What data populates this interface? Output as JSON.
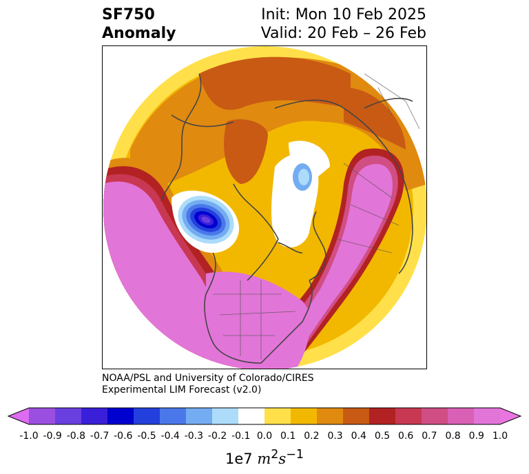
{
  "title": {
    "variable": "SF750",
    "kind": "Anomaly",
    "init": "Init: Mon 10 Feb 2025",
    "valid": "Valid: 20 Feb – 26 Feb"
  },
  "credit": {
    "line1": "NOAA/PSL and University of Colorado/CIRES",
    "line2": "Experimental LIM Forecast (v2.0)"
  },
  "colorbar": {
    "ticks": [
      "-1.0",
      "-0.9",
      "-0.8",
      "-0.7",
      "-0.6",
      "-0.5",
      "-0.4",
      "-0.3",
      "-0.2",
      "-0.1",
      "0.0",
      "0.1",
      "0.2",
      "0.3",
      "0.4",
      "0.5",
      "0.6",
      "0.7",
      "0.8",
      "0.9",
      "1.0"
    ],
    "colors": [
      "#9b4fe0",
      "#6a3fe0",
      "#3a1fd8",
      "#0000cf",
      "#2340dc",
      "#4a78ea",
      "#74acf2",
      "#acdcfa",
      "#ffffff",
      "#ffe04a",
      "#f2b800",
      "#e08a10",
      "#c85a14",
      "#b22222",
      "#c83852",
      "#d14e84",
      "#da60b6",
      "#e275d8"
    ],
    "extend_low_color": "#dc6cf0",
    "extend_high_color": "#e875e0",
    "unit_base": "1e7",
    "unit_expr": "m",
    "unit_exp1": "2",
    "unit_s": "s",
    "unit_exp2": "−1"
  }
}
